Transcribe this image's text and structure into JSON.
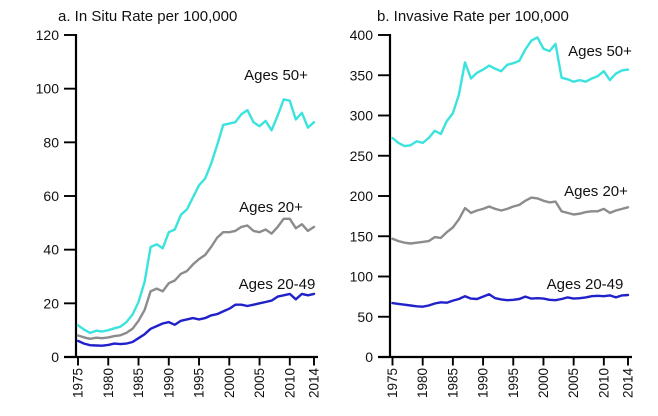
{
  "figure": {
    "background": "#ffffff",
    "axis_color": "#000000",
    "text_color": "#111111"
  },
  "chart_data": [
    {
      "id": "in-situ-panel",
      "type": "line",
      "title": "a. In Situ Rate per 100,000",
      "xlim": [
        1975,
        2014
      ],
      "ylim": [
        0,
        120
      ],
      "xticks": [
        1975,
        1980,
        1985,
        1990,
        1995,
        2000,
        2005,
        2010,
        2014
      ],
      "yticks": [
        0,
        20,
        40,
        60,
        80,
        100,
        120
      ],
      "grid": false,
      "legend_position": "inline-annotations",
      "x": [
        1975,
        1976,
        1977,
        1978,
        1979,
        1980,
        1981,
        1982,
        1983,
        1984,
        1985,
        1986,
        1987,
        1988,
        1989,
        1990,
        1991,
        1992,
        1993,
        1994,
        1995,
        1996,
        1997,
        1998,
        1999,
        2000,
        2001,
        2002,
        2003,
        2004,
        2005,
        2006,
        2007,
        2008,
        2009,
        2010,
        2011,
        2012,
        2013,
        2014
      ],
      "series": [
        {
          "name": "Ages 50+",
          "color": "#3CE3DE",
          "values": [
            11.8,
            10.2,
            9.0,
            9.8,
            9.5,
            10.0,
            10.7,
            11.3,
            13.0,
            15.8,
            20.5,
            28.0,
            41.0,
            42.0,
            40.5,
            46.5,
            47.5,
            53.0,
            55.0,
            59.5,
            64.0,
            66.5,
            72.0,
            79.0,
            86.5,
            87.0,
            87.5,
            90.5,
            92.0,
            87.5,
            86.0,
            88.0,
            84.5,
            90.0,
            96.0,
            95.5,
            88.5,
            91.0,
            85.5,
            87.5
          ]
        },
        {
          "name": "Ages 20+",
          "color": "#8C8C8C",
          "values": [
            8.0,
            7.3,
            6.8,
            7.2,
            7.0,
            7.3,
            7.8,
            8.1,
            9.0,
            10.5,
            13.5,
            17.5,
            24.5,
            25.5,
            24.5,
            27.5,
            28.5,
            31.0,
            32.0,
            34.5,
            36.5,
            38.0,
            41.0,
            44.5,
            46.5,
            46.5,
            47.0,
            48.5,
            49.0,
            47.0,
            46.5,
            47.5,
            46.0,
            48.5,
            51.5,
            51.5,
            48.0,
            49.5,
            47.0,
            48.5
          ]
        },
        {
          "name": "Ages 20-49",
          "color": "#2121CC",
          "values": [
            6.0,
            5.0,
            4.4,
            4.3,
            4.2,
            4.5,
            5.0,
            4.8,
            5.0,
            5.6,
            7.0,
            8.5,
            10.5,
            11.5,
            12.5,
            13.0,
            12.0,
            13.5,
            14.0,
            14.5,
            14.0,
            14.5,
            15.5,
            16.0,
            17.0,
            18.0,
            19.5,
            19.5,
            19.0,
            19.5,
            20.0,
            20.5,
            21.0,
            22.5,
            23.0,
            23.5,
            21.5,
            23.5,
            23.0,
            23.5
          ]
        }
      ],
      "annotations": [
        {
          "text": "Ages 50+",
          "x": 2007.7,
          "y": 104.7
        },
        {
          "text": "Ages 20+",
          "x": 2006.9,
          "y": 55.5
        },
        {
          "text": "Ages 20-49",
          "x": 2007.9,
          "y": 26.6
        }
      ]
    },
    {
      "id": "invasive-panel",
      "type": "line",
      "title": "b. Invasive Rate per 100,000",
      "xlim": [
        1975,
        2014
      ],
      "ylim": [
        0,
        400
      ],
      "xticks": [
        1975,
        1980,
        1985,
        1990,
        1995,
        2000,
        2005,
        2010,
        2014
      ],
      "yticks": [
        0,
        50,
        100,
        150,
        200,
        250,
        300,
        350,
        400
      ],
      "grid": false,
      "legend_position": "inline-annotations",
      "x": [
        1975,
        1976,
        1977,
        1978,
        1979,
        1980,
        1981,
        1982,
        1983,
        1984,
        1985,
        1986,
        1987,
        1988,
        1989,
        1990,
        1991,
        1992,
        1993,
        1994,
        1995,
        1996,
        1997,
        1998,
        1999,
        2000,
        2001,
        2002,
        2003,
        2004,
        2005,
        2006,
        2007,
        2008,
        2009,
        2010,
        2011,
        2012,
        2013,
        2014
      ],
      "series": [
        {
          "name": "Ages 50+",
          "color": "#3CE3DE",
          "values": [
            272,
            266,
            262,
            263,
            268,
            266,
            272,
            281,
            277,
            293,
            303,
            326,
            366,
            346,
            353,
            357,
            362,
            358,
            355,
            363,
            365,
            368,
            382,
            393,
            397,
            383,
            380,
            389,
            347,
            345,
            342,
            344,
            342,
            346,
            349,
            355,
            344,
            352,
            356,
            357
          ]
        },
        {
          "name": "Ages 20+",
          "color": "#8C8C8C",
          "values": [
            147,
            144,
            142,
            141,
            142,
            143,
            144,
            149,
            148,
            155,
            161,
            171,
            185,
            179,
            182,
            184,
            187,
            184,
            182,
            184,
            187,
            189,
            194,
            198,
            197,
            194,
            192,
            193,
            181,
            179,
            177,
            178,
            180,
            181,
            181,
            184,
            179,
            182,
            184,
            186
          ]
        },
        {
          "name": "Ages 20-49",
          "color": "#2121CC",
          "values": [
            67,
            66,
            65,
            64,
            63,
            62.5,
            64,
            66.5,
            68,
            67.5,
            70,
            72,
            75.5,
            72.5,
            72,
            75,
            78,
            73,
            71.5,
            70.5,
            71,
            72,
            75,
            72.5,
            73,
            72.5,
            71,
            70.5,
            72,
            74,
            72.5,
            73,
            74,
            75.5,
            76,
            75.5,
            76.5,
            74,
            76.5,
            77
          ]
        }
      ],
      "annotations": [
        {
          "text": "Ages 50+",
          "x": 2009.3,
          "y": 378.9
        },
        {
          "text": "Ages 20+",
          "x": 2008.7,
          "y": 205.0
        },
        {
          "text": "Ages 20-49",
          "x": 2006.9,
          "y": 88.8
        }
      ]
    }
  ]
}
